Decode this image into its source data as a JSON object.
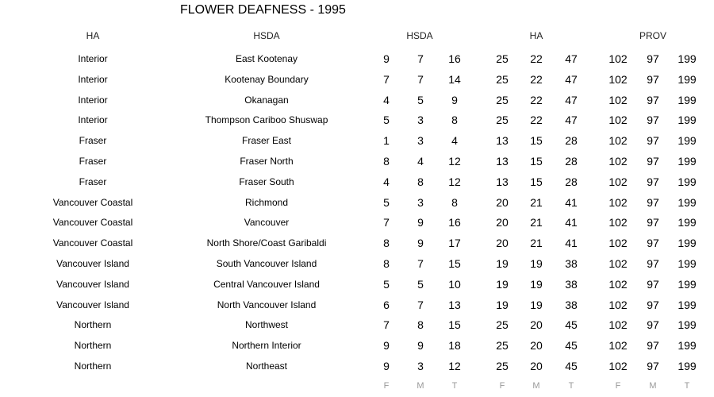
{
  "title": "FLOWER DEAFNESS - 1995",
  "headers": {
    "ha": "HA",
    "hsda": "HSDA",
    "hsda_group": "HSDA",
    "ha_group": "HA",
    "prov_group": "PROV"
  },
  "footer": [
    "F",
    "M",
    "T",
    "F",
    "M",
    "T",
    "F",
    "M",
    "T"
  ],
  "rows": [
    {
      "ha": "Interior",
      "hsda": "East Kootenay",
      "values": [
        9,
        7,
        16,
        25,
        22,
        47,
        102,
        97,
        199
      ]
    },
    {
      "ha": "Interior",
      "hsda": "Kootenay Boundary",
      "values": [
        7,
        7,
        14,
        25,
        22,
        47,
        102,
        97,
        199
      ]
    },
    {
      "ha": "Interior",
      "hsda": "Okanagan",
      "values": [
        4,
        5,
        9,
        25,
        22,
        47,
        102,
        97,
        199
      ]
    },
    {
      "ha": "Interior",
      "hsda": "Thompson Cariboo Shuswap",
      "values": [
        5,
        3,
        8,
        25,
        22,
        47,
        102,
        97,
        199
      ]
    },
    {
      "ha": "Fraser",
      "hsda": "Fraser East",
      "values": [
        1,
        3,
        4,
        13,
        15,
        28,
        102,
        97,
        199
      ]
    },
    {
      "ha": "Fraser",
      "hsda": "Fraser North",
      "values": [
        8,
        4,
        12,
        13,
        15,
        28,
        102,
        97,
        199
      ]
    },
    {
      "ha": "Fraser",
      "hsda": "Fraser South",
      "values": [
        4,
        8,
        12,
        13,
        15,
        28,
        102,
        97,
        199
      ]
    },
    {
      "ha": "Vancouver Coastal",
      "hsda": "Richmond",
      "values": [
        5,
        3,
        8,
        20,
        21,
        41,
        102,
        97,
        199
      ]
    },
    {
      "ha": "Vancouver Coastal",
      "hsda": "Vancouver",
      "values": [
        7,
        9,
        16,
        20,
        21,
        41,
        102,
        97,
        199
      ]
    },
    {
      "ha": "Vancouver Coastal",
      "hsda": "North Shore/Coast Garibaldi",
      "values": [
        8,
        9,
        17,
        20,
        21,
        41,
        102,
        97,
        199
      ]
    },
    {
      "ha": "Vancouver Island",
      "hsda": "South Vancouver Island",
      "values": [
        8,
        7,
        15,
        19,
        19,
        38,
        102,
        97,
        199
      ]
    },
    {
      "ha": "Vancouver Island",
      "hsda": "Central Vancouver Island",
      "values": [
        5,
        5,
        10,
        19,
        19,
        38,
        102,
        97,
        199
      ]
    },
    {
      "ha": "Vancouver Island",
      "hsda": "North Vancouver Island",
      "values": [
        6,
        7,
        13,
        19,
        19,
        38,
        102,
        97,
        199
      ]
    },
    {
      "ha": "Northern",
      "hsda": "Northwest",
      "values": [
        7,
        8,
        15,
        25,
        20,
        45,
        102,
        97,
        199
      ]
    },
    {
      "ha": "Northern",
      "hsda": "Northern Interior",
      "values": [
        9,
        9,
        18,
        25,
        20,
        45,
        102,
        97,
        199
      ]
    },
    {
      "ha": "Northern",
      "hsda": "Northeast",
      "values": [
        9,
        3,
        12,
        25,
        20,
        45,
        102,
        97,
        199
      ]
    }
  ]
}
